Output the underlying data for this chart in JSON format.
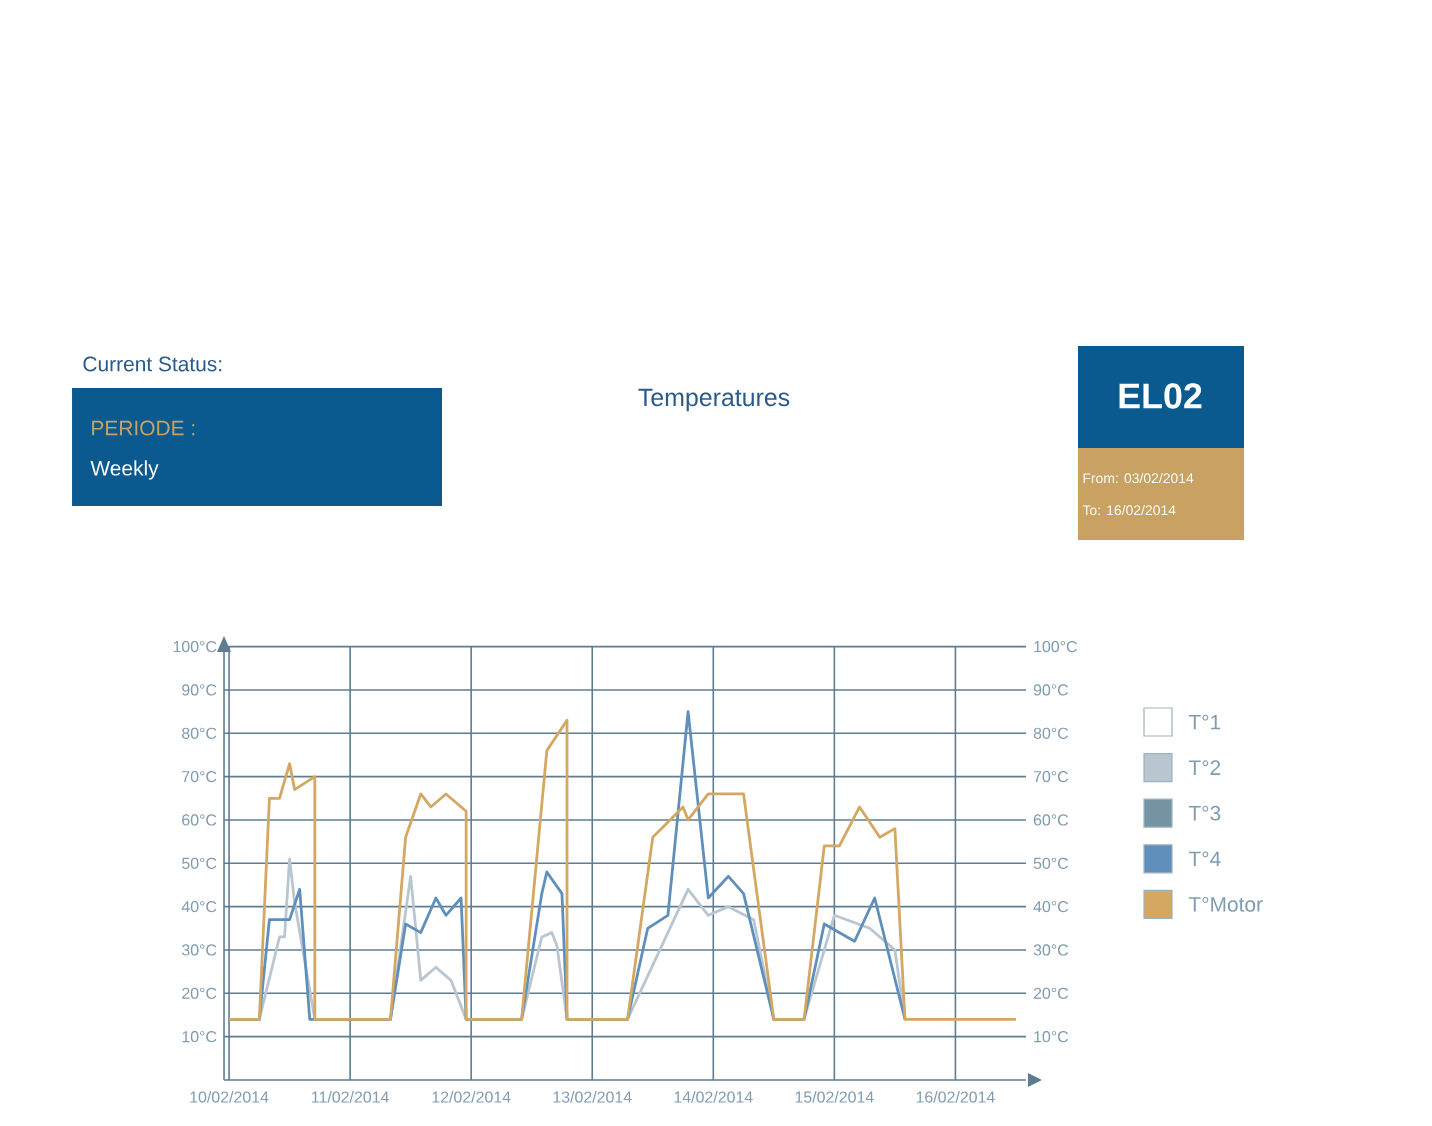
{
  "chart_data": {
    "type": "line",
    "title": "Temperatures",
    "annotations": [
      "Current Status:",
      "PERIODE :",
      "Weekly",
      "EL02",
      "From: 03/02/2014",
      "To: 16/02/2014"
    ],
    "xlim": [
      "2014-02-09T23:00",
      "2014-02-16T14:00"
    ],
    "xticks": [
      {
        "value": "2014-02-10",
        "label": "10/02/2014"
      },
      {
        "value": "2014-02-11",
        "label": "11/02/2014"
      },
      {
        "value": "2014-02-12",
        "label": "12/02/2014"
      },
      {
        "value": "2014-02-13",
        "label": "13/02/2014"
      },
      {
        "value": "2014-02-14",
        "label": "14/02/2014"
      },
      {
        "value": "2014-02-15",
        "label": "15/02/2014"
      },
      {
        "value": "2014-02-16",
        "label": "16/02/2014"
      }
    ],
    "ylim": [
      0,
      100
    ],
    "yticks": [
      {
        "value": 10,
        "label": "10°C"
      },
      {
        "value": 20,
        "label": "20°C"
      },
      {
        "value": 30,
        "label": "30°C"
      },
      {
        "value": 40,
        "label": "40°C"
      },
      {
        "value": 50,
        "label": "50°C"
      },
      {
        "value": 60,
        "label": "60°C"
      },
      {
        "value": 70,
        "label": "70°C"
      },
      {
        "value": 80,
        "label": "80°C"
      },
      {
        "value": 90,
        "label": "90°C"
      },
      {
        "value": 100,
        "label": "100°C"
      }
    ],
    "y2lim": [
      0,
      100
    ],
    "y2ticks": [
      {
        "value": 10,
        "label": "10°C"
      },
      {
        "value": 20,
        "label": "20°C"
      },
      {
        "value": 30,
        "label": "30°C"
      },
      {
        "value": 40,
        "label": "40°C"
      },
      {
        "value": 50,
        "label": "50°C"
      },
      {
        "value": 60,
        "label": "60°C"
      },
      {
        "value": 70,
        "label": "70°C"
      },
      {
        "value": 80,
        "label": "80°C"
      },
      {
        "value": 90,
        "label": "90°C"
      },
      {
        "value": 100,
        "label": "100°C"
      }
    ],
    "grid": true,
    "legend": "right",
    "series": [
      {
        "name": "T°1",
        "color": "#ffffff"
      },
      {
        "name": "T°2",
        "color": "#b9c6cf",
        "x": [
          "2014-02-10T00:00",
          "2014-02-10T06:00",
          "2014-02-10T10:00",
          "2014-02-10T11:00",
          "2014-02-10T12:00",
          "2014-02-10T13:00",
          "2014-02-10T17:00",
          "2014-02-11T08:00",
          "2014-02-11T12:00",
          "2014-02-11T14:00",
          "2014-02-11T17:00",
          "2014-02-11T20:00",
          "2014-02-11T23:00",
          "2014-02-12T10:00",
          "2014-02-12T14:00",
          "2014-02-12T16:00",
          "2014-02-12T17:00",
          "2014-02-12T19:00",
          "2014-02-13T07:00",
          "2014-02-13T19:00",
          "2014-02-13T23:00",
          "2014-02-14T03:00",
          "2014-02-14T08:00",
          "2014-02-14T12:00",
          "2014-02-14T18:00",
          "2014-02-15T00:00",
          "2014-02-15T07:00",
          "2014-02-15T12:00",
          "2014-02-15T14:00"
        ],
        "values": [
          14,
          14,
          33,
          33,
          51,
          41,
          14,
          14,
          47,
          23,
          26,
          23,
          14,
          14,
          33,
          34,
          31,
          14,
          14,
          44,
          38,
          40,
          37,
          14,
          14,
          38,
          35,
          30,
          14
        ]
      },
      {
        "name": "T°3",
        "color": "#7595a5"
      },
      {
        "name": "T°4",
        "color": "#5f8fbb",
        "x": [
          "2014-02-10T00:00",
          "2014-02-10T06:00",
          "2014-02-10T08:00",
          "2014-02-10T12:00",
          "2014-02-10T14:00",
          "2014-02-10T16:00",
          "2014-02-11T08:00",
          "2014-02-11T11:00",
          "2014-02-11T14:00",
          "2014-02-11T17:00",
          "2014-02-11T19:00",
          "2014-02-11T22:00",
          "2014-02-11T23:00",
          "2014-02-12T10:00",
          "2014-02-12T14:00",
          "2014-02-12T15:00",
          "2014-02-12T18:00",
          "2014-02-12T19:00",
          "2014-02-13T07:00",
          "2014-02-13T11:00",
          "2014-02-13T15:00",
          "2014-02-13T19:00",
          "2014-02-13T23:00",
          "2014-02-14T03:00",
          "2014-02-14T06:00",
          "2014-02-14T12:00",
          "2014-02-14T18:00",
          "2014-02-14T22:00",
          "2014-02-15T04:00",
          "2014-02-15T08:00",
          "2014-02-15T14:00"
        ],
        "values": [
          14,
          14,
          37,
          37,
          44,
          14,
          14,
          36,
          34,
          42,
          38,
          42,
          14,
          14,
          43,
          48,
          43,
          14,
          14,
          35,
          38,
          85,
          42,
          47,
          43,
          14,
          14,
          36,
          32,
          42,
          14
        ]
      },
      {
        "name": "T°Motor",
        "color": "#d4a762",
        "x": [
          "2014-02-10T00:00",
          "2014-02-10T06:00",
          "2014-02-10T08:00",
          "2014-02-10T10:00",
          "2014-02-10T12:00",
          "2014-02-10T13:00",
          "2014-02-10T17:00",
          "2014-02-10T17:00",
          "2014-02-11T08:00",
          "2014-02-11T11:00",
          "2014-02-11T14:00",
          "2014-02-11T16:00",
          "2014-02-11T19:00",
          "2014-02-11T23:00",
          "2014-02-11T23:00",
          "2014-02-12T10:00",
          "2014-02-12T15:00",
          "2014-02-12T19:00",
          "2014-02-12T19:00",
          "2014-02-13T07:00",
          "2014-02-13T12:00",
          "2014-02-13T18:00",
          "2014-02-13T19:00",
          "2014-02-13T23:00",
          "2014-02-14T06:00",
          "2014-02-14T12:00",
          "2014-02-14T18:00",
          "2014-02-14T22:00",
          "2014-02-15T01:00",
          "2014-02-15T05:00",
          "2014-02-15T09:00",
          "2014-02-15T12:00",
          "2014-02-15T14:00",
          "2014-02-16T12:00"
        ],
        "values": [
          14,
          14,
          65,
          65,
          73,
          67,
          70,
          14,
          14,
          56,
          66,
          63,
          66,
          62,
          14,
          14,
          76,
          83,
          14,
          14,
          56,
          63,
          60,
          66,
          66,
          14,
          14,
          54,
          54,
          63,
          56,
          58,
          14,
          14
        ]
      }
    ]
  }
}
